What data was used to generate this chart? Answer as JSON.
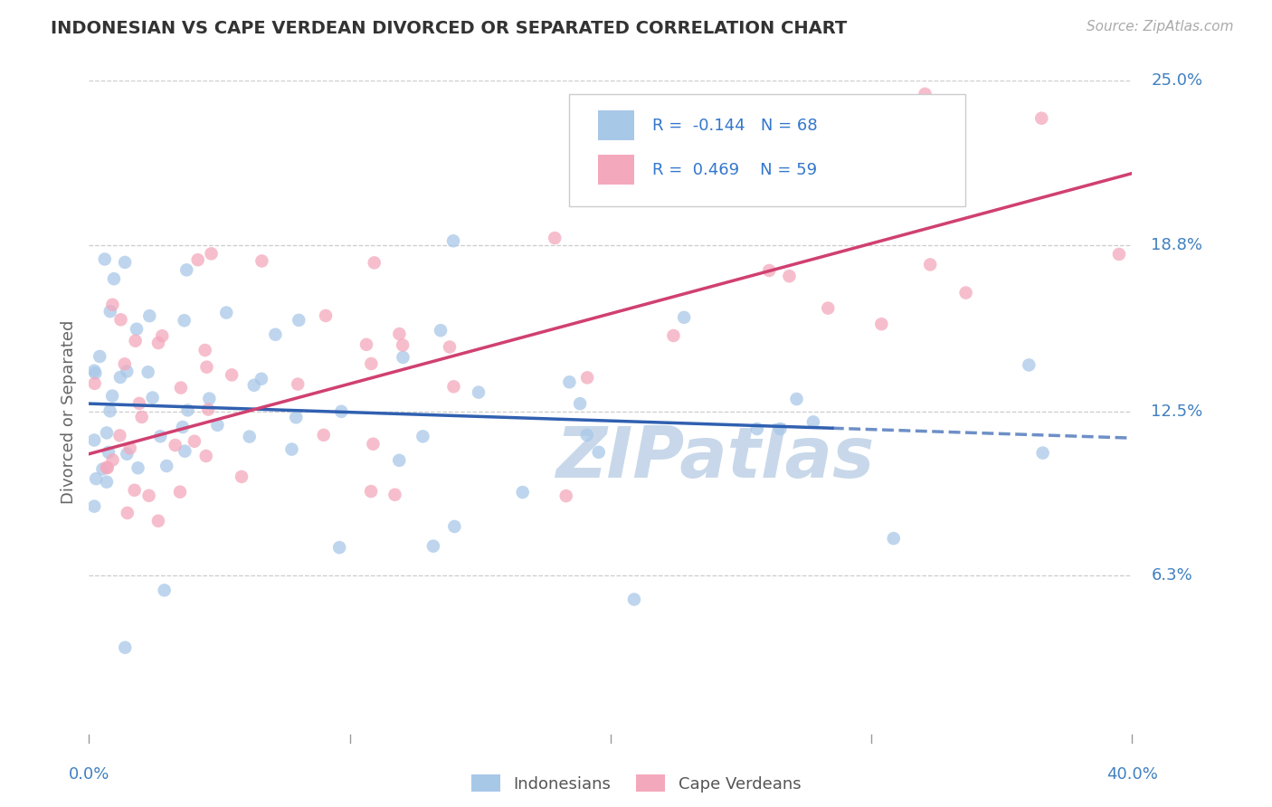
{
  "title": "INDONESIAN VS CAPE VERDEAN DIVORCED OR SEPARATED CORRELATION CHART",
  "source_text": "Source: ZipAtlas.com",
  "ylabel": "Divorced or Separated",
  "xlim": [
    0.0,
    0.4
  ],
  "ylim": [
    0.0,
    0.25
  ],
  "ytick_labels": [
    "6.3%",
    "12.5%",
    "18.8%",
    "25.0%"
  ],
  "ytick_values": [
    0.063,
    0.125,
    0.188,
    0.25
  ],
  "xtick_labels": [
    "0.0%",
    "40.0%"
  ],
  "xtick_values": [
    0.0,
    0.4
  ],
  "r_indonesian": -0.144,
  "n_indonesian": 68,
  "r_capeverdean": 0.469,
  "n_capeverdean": 59,
  "color_indonesian": "#a8c8e8",
  "color_capeverdean": "#f4a8bc",
  "color_line_indonesian": "#3060b0",
  "color_line_capeverdean": "#d04070",
  "watermark": "ZIPatlas",
  "watermark_color": "#c8d8ea",
  "seed_indonesian": 42,
  "seed_capeverdean": 123,
  "indo_line_start_x": 0.0,
  "indo_line_end_x": 0.285,
  "indo_line_dash_start_x": 0.285,
  "indo_line_dash_end_x": 0.4,
  "indo_line_y_at_0": 0.128,
  "indo_line_y_at_40": 0.115,
  "cape_line_y_at_0": 0.109,
  "cape_line_y_at_40": 0.215
}
